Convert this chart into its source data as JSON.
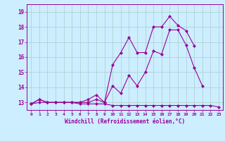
{
  "background_color": "#cceeff",
  "line_color": "#990099",
  "grid_color": "#aacccc",
  "xlabel": "Windchill (Refroidissement éolien,°C)",
  "xlim": [
    -0.5,
    23.5
  ],
  "ylim": [
    12.5,
    19.5
  ],
  "yticks": [
    13,
    14,
    15,
    16,
    17,
    18,
    19
  ],
  "xticks": [
    0,
    1,
    2,
    3,
    4,
    5,
    6,
    7,
    8,
    9,
    10,
    11,
    12,
    13,
    14,
    15,
    16,
    17,
    18,
    19,
    20,
    21,
    22,
    23
  ],
  "line1_x": [
    0,
    1,
    2,
    3,
    4,
    5,
    6,
    7,
    8,
    9,
    10,
    11,
    12,
    13,
    14,
    15,
    16,
    17,
    18,
    19,
    20,
    21,
    22,
    23
  ],
  "line1_y": [
    12.9,
    13.0,
    13.0,
    13.0,
    13.0,
    13.0,
    12.9,
    12.9,
    12.9,
    12.9,
    12.8,
    12.8,
    12.8,
    12.8,
    12.8,
    12.8,
    12.8,
    12.8,
    12.8,
    12.8,
    12.8,
    12.8,
    12.8,
    12.7
  ],
  "line2_x": [
    0,
    1,
    2,
    3,
    4,
    5,
    6,
    7,
    8,
    9,
    10,
    11,
    12,
    13,
    14,
    15,
    16,
    17,
    18,
    19,
    20,
    21,
    22,
    23
  ],
  "line2_y": [
    12.9,
    13.2,
    13.0,
    13.0,
    13.0,
    13.0,
    13.0,
    13.0,
    13.2,
    13.0,
    14.1,
    13.6,
    14.8,
    14.1,
    15.0,
    16.4,
    16.2,
    17.8,
    17.8,
    16.8,
    15.3,
    14.1,
    null,
    null
  ],
  "line3_x": [
    0,
    1,
    2,
    3,
    4,
    5,
    6,
    7,
    8,
    9,
    10,
    11,
    12,
    13,
    14,
    15,
    16,
    17,
    18,
    19,
    20,
    21,
    22,
    23
  ],
  "line3_y": [
    12.9,
    13.2,
    13.0,
    13.0,
    13.0,
    13.0,
    13.0,
    13.2,
    13.5,
    13.0,
    15.5,
    16.3,
    17.3,
    16.3,
    16.3,
    18.0,
    18.0,
    18.7,
    18.1,
    17.75,
    16.75,
    null,
    null,
    null
  ],
  "marker_size": 2.5,
  "linewidth": 0.8
}
